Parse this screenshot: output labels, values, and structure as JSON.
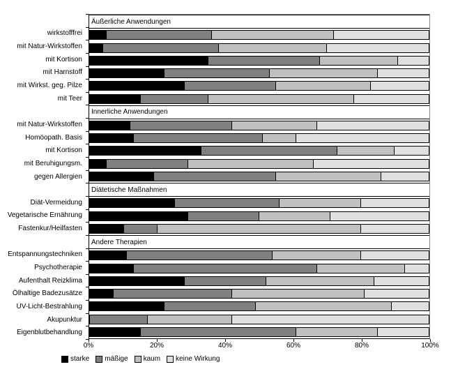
{
  "chart_data": {
    "type": "bar",
    "orientation": "horizontal",
    "stacked": true,
    "unit": "percent",
    "xlim": [
      0,
      100
    ],
    "x_ticks": [
      "0%",
      "20%",
      "40%",
      "60%",
      "80%",
      "100%"
    ],
    "grid": false,
    "legend_position": "bottom-left",
    "series_names": [
      "starke",
      "mäßige",
      "kaum",
      "keine Wirkung"
    ],
    "colors": {
      "starke": "#000000",
      "maessige": "#808080",
      "kaum": "#C0C0C0",
      "keine_wirkung": "#E0E0E0"
    },
    "legend": {
      "items": [
        {
          "label": "starke",
          "color": "#000000"
        },
        {
          "label": "mäßige",
          "color": "#808080"
        },
        {
          "label": "kaum",
          "color": "#C0C0C0"
        },
        {
          "label": "keine Wirkung",
          "color": "#E0E0E0"
        }
      ]
    },
    "groups": [
      {
        "header": "Äußerliche Anwendungen",
        "rows": [
          {
            "label": "wirkstofffrei",
            "values": [
              5,
              31,
              36,
              28
            ]
          },
          {
            "label": "mit Natur-Wirkstoffen",
            "values": [
              4,
              34,
              32,
              30
            ]
          },
          {
            "label": "mit Kortison",
            "values": [
              35,
              33,
              23,
              9
            ]
          },
          {
            "label": "mit Harnstoff",
            "values": [
              22,
              31,
              32,
              15
            ]
          },
          {
            "label": "mit Wirkst. geg. Pilze",
            "values": [
              28,
              27,
              28,
              17
            ]
          },
          {
            "label": "mit Teer",
            "values": [
              15,
              20,
              43,
              22
            ]
          }
        ]
      },
      {
        "header": "Innerliche Anwendungen",
        "rows": [
          {
            "label": "mit Natur-Wirkstoffen",
            "values": [
              12,
              30,
              25,
              33
            ]
          },
          {
            "label": "Homöopath. Basis",
            "values": [
              13,
              38,
              10,
              39
            ]
          },
          {
            "label": "mit Kortison",
            "values": [
              33,
              40,
              17,
              10
            ]
          },
          {
            "label": "mit Beruhigungsm.",
            "values": [
              5,
              24,
              37,
              34
            ]
          },
          {
            "label": "gegen Allergien",
            "values": [
              19,
              36,
              31,
              14
            ]
          }
        ]
      },
      {
        "header": "Diätetische Maßnahmen",
        "rows": [
          {
            "label": "Diät-Vermeidung",
            "values": [
              25,
              31,
              24,
              20
            ]
          },
          {
            "label": "Vegetarische Ernährung",
            "values": [
              29,
              21,
              21,
              29
            ]
          },
          {
            "label": "Fastenkur/Heilfasten",
            "values": [
              10,
              10,
              60,
              20
            ]
          }
        ]
      },
      {
        "header": "Andere Therapien",
        "rows": [
          {
            "label": "Entspannungstechniken",
            "values": [
              11,
              43,
              26,
              20
            ]
          },
          {
            "label": "Psychotherapie",
            "values": [
              13,
              54,
              26,
              7
            ]
          },
          {
            "label": "Aufenthalt Reizklima",
            "values": [
              28,
              24,
              32,
              16
            ]
          },
          {
            "label": "Ölhaltige Badezusätze",
            "values": [
              7,
              35,
              39,
              19
            ]
          },
          {
            "label": "UV-Licht-Bestrahlung",
            "values": [
              22,
              27,
              40,
              11
            ]
          },
          {
            "label": "Akupunktur",
            "values": [
              0,
              17,
              25,
              58
            ]
          },
          {
            "label": "Eigenblutbehandlung",
            "values": [
              15,
              46,
              24,
              15
            ]
          }
        ]
      }
    ]
  }
}
